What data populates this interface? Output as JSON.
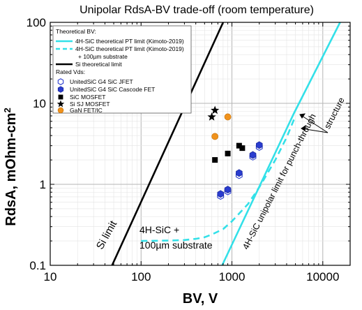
{
  "chart_data": {
    "type": "scatter",
    "title": "Unipolar RdsA-BV trade-off (room temperature)",
    "xlabel": "BV, V",
    "ylabel": "RdsA, mOhm-cm",
    "ylabel_superscript": "2",
    "x_scale": "log",
    "y_scale": "log",
    "xlim": [
      10,
      20000
    ],
    "ylim": [
      0.1,
      100
    ],
    "x_ticks": [
      {
        "value": 10,
        "label": "10"
      },
      {
        "value": 100,
        "label": "100"
      },
      {
        "value": 1000,
        "label": "1000"
      },
      {
        "value": 10000,
        "label": "10000"
      }
    ],
    "y_ticks": [
      {
        "value": 0.1,
        "label": "0.1"
      },
      {
        "value": 1,
        "label": "1"
      },
      {
        "value": 10,
        "label": "10"
      },
      {
        "value": 100,
        "label": "100"
      }
    ],
    "grid": true,
    "legend_position": "top-left",
    "legend": {
      "header_theoretical": "Theoretical BV:",
      "entry_pt": "4H-SiC theoretical PT limit (Kimoto-2019)",
      "entry_pt_sub": "4H-SiC theoretical PT limit (Kimoto-2019)",
      "entry_pt_sub_note": "+ 100µm substrate",
      "entry_si": "Si theoretical limit",
      "header_rated": "Rated Vds:",
      "entry_jfet": "UnitedSiC G4 SiC JFET",
      "entry_cascode": "UnitedSiC G4 SiC Cascode FET",
      "entry_mosfet": "SiC MOSFET",
      "entry_sj": "Si SJ MOSFET",
      "entry_gan": "GaN FET/IC"
    },
    "colors": {
      "sic_limit": "#33e0e8",
      "si_limit": "#000000",
      "jfet": "#2a3ccf",
      "cascode": "#2a3ccf",
      "mosfet": "#000000",
      "sj": "#000000",
      "gan": "#f0921c"
    },
    "curves": {
      "si_limit": {
        "x": [
          48,
          800
        ],
        "y": [
          0.1,
          100
        ]
      },
      "sic_pt_limit": {
        "x": [
          780,
          4800,
          15500
        ],
        "y": [
          0.1,
          7.5,
          100
        ]
      },
      "sic_pt_substrate": {
        "x": [
          100,
          200,
          300,
          400,
          500,
          600,
          800,
          1000,
          1500,
          2000,
          3000,
          4000,
          5000
        ],
        "y": [
          0.2,
          0.202,
          0.205,
          0.212,
          0.222,
          0.24,
          0.28,
          0.35,
          0.57,
          0.92,
          2.0,
          3.8,
          7.0
        ]
      }
    },
    "series": [
      {
        "name": "UnitedSiC G4 SiC JFET",
        "marker": "hexagon-open",
        "points": [
          [
            750,
            0.72
          ],
          [
            900,
            0.82
          ],
          [
            1200,
            1.3
          ],
          [
            1700,
            2.2
          ],
          [
            2000,
            2.9
          ]
        ]
      },
      {
        "name": "UnitedSiC G4 SiC Cascode FET",
        "marker": "hexagon-filled",
        "points": [
          [
            750,
            0.76
          ],
          [
            900,
            0.86
          ],
          [
            1200,
            1.38
          ],
          [
            1700,
            2.3
          ],
          [
            2000,
            3.05
          ]
        ]
      },
      {
        "name": "SiC MOSFET",
        "marker": "square",
        "points": [
          [
            650,
            2.0
          ],
          [
            900,
            2.4
          ],
          [
            1200,
            3.0
          ],
          [
            1300,
            2.8
          ]
        ]
      },
      {
        "name": "Si SJ MOSFET",
        "marker": "star",
        "points": [
          [
            600,
            6.8
          ],
          [
            650,
            8.2
          ]
        ]
      },
      {
        "name": "GaN FET/IC",
        "marker": "circle",
        "points": [
          [
            650,
            3.9
          ],
          [
            900,
            6.8
          ]
        ]
      }
    ],
    "annotations": {
      "si_limit_label": "Si limit",
      "substrate_label_line1": "4H-SiC +",
      "substrate_label_line2": "100µm substrate",
      "sic_unipolar_label": "4H-SiC unipolar limit for punch-through",
      "structure_label": "structure"
    }
  }
}
